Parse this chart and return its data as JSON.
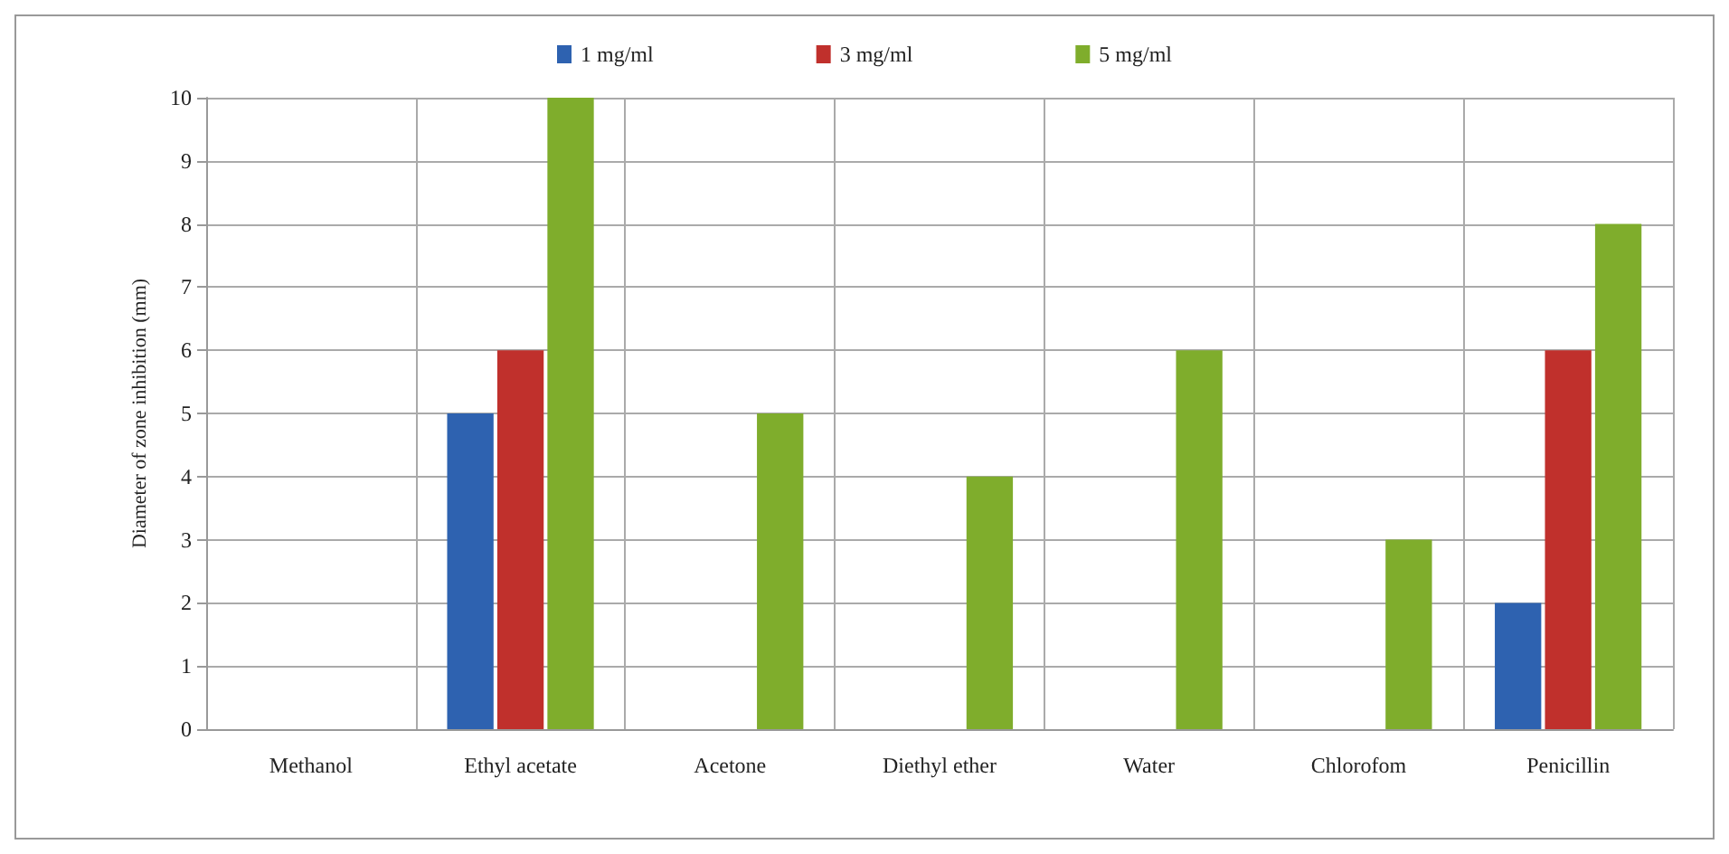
{
  "chart_data": {
    "type": "bar",
    "ylabel": "Diameter of zone inhibition (mm)",
    "categories": [
      "Methanol",
      "Ethyl acetate",
      "Acetone",
      "Diethyl ether",
      "Water",
      "Chlorofom",
      "Penicillin"
    ],
    "series": [
      {
        "name": "1 mg/ml",
        "color": "#2e62b0",
        "values": [
          0,
          5,
          0,
          0,
          0,
          0,
          2
        ]
      },
      {
        "name": "3 mg/ml",
        "color": "#c0302c",
        "values": [
          0,
          6,
          0,
          0,
          0,
          0,
          6
        ]
      },
      {
        "name": "5 mg/ml",
        "color": "#7fad2c",
        "values": [
          0,
          10,
          5,
          4,
          6,
          3,
          8
        ]
      }
    ],
    "ylim": [
      0,
      10
    ],
    "yticks": [
      0,
      1,
      2,
      3,
      4,
      5,
      6,
      7,
      8,
      9,
      10
    ],
    "grid": true,
    "legend": "top"
  }
}
